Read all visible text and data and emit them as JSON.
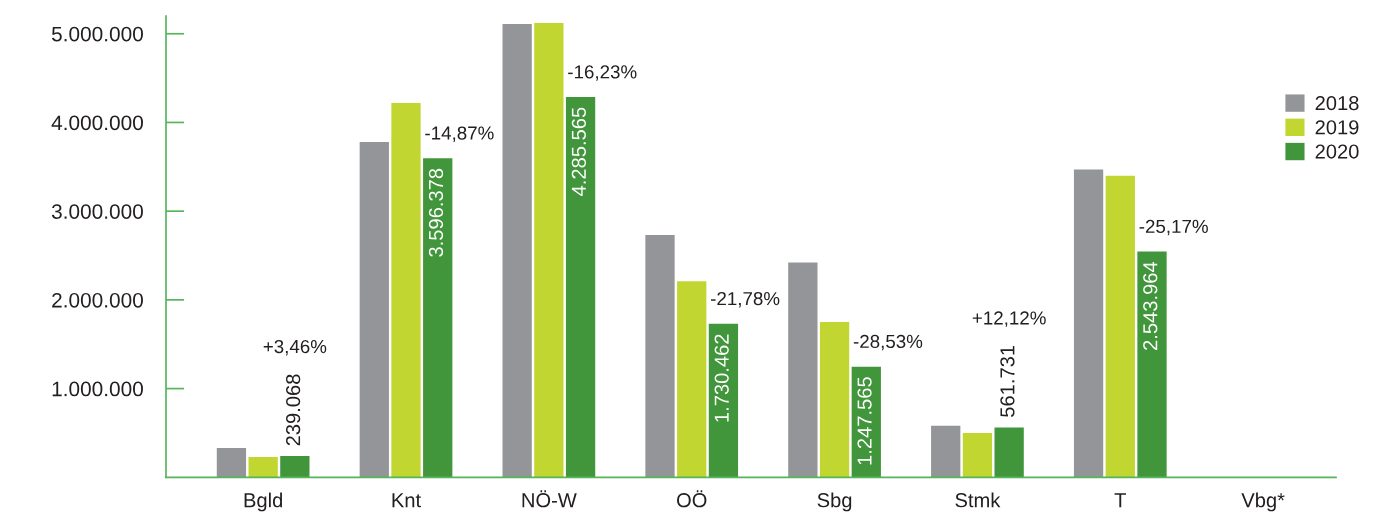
{
  "chart_data": {
    "type": "bar",
    "categories": [
      "Bgld",
      "Knt",
      "NÖ-W",
      "OÖ",
      "Sbg",
      "Stmk",
      "T",
      "Vbg*"
    ],
    "series": [
      {
        "name": "2018",
        "color": "#939598",
        "values": [
          330000,
          3780000,
          5110000,
          2730000,
          2420000,
          580000,
          3470000,
          null
        ]
      },
      {
        "name": "2019",
        "color": "#c1d631",
        "values": [
          230000,
          4220000,
          5120000,
          2210000,
          1750000,
          500000,
          3400000,
          null
        ]
      },
      {
        "name": "2020",
        "color": "#41963b",
        "values": [
          239068,
          3596378,
          4285565,
          1730462,
          1247565,
          561731,
          2543964,
          null
        ],
        "value_labels": [
          "239.068",
          "3.596.378",
          "4.285.565",
          "1.730.462",
          "1.247.565",
          "561.731",
          "2.543.964",
          null
        ]
      }
    ],
    "ylim": [
      0,
      5200000
    ],
    "yticks": [
      {
        "value": 1000000,
        "label": "1.000.000"
      },
      {
        "value": 2000000,
        "label": "2.000.000"
      },
      {
        "value": 3000000,
        "label": "3.000.000"
      },
      {
        "value": 4000000,
        "label": "4.000.000"
      },
      {
        "value": 5000000,
        "label": "5.000.000"
      }
    ],
    "legend": "top right",
    "annotations": [
      "+3,46%",
      "-14,87%",
      "-16,23%",
      "-21,78%",
      "-28,53%",
      "+12,12%",
      "-25,17%"
    ]
  }
}
